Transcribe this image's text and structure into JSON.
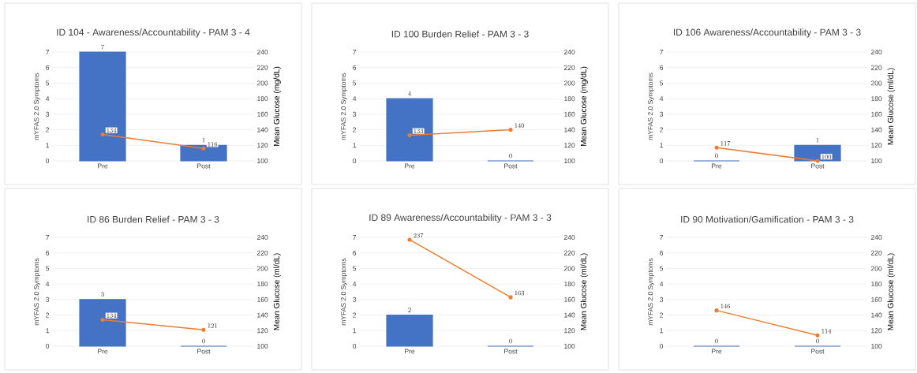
{
  "chart_data": [
    {
      "type": "bar",
      "title": "ID 104 - Awareness/Accountability - PAM 3 - 4",
      "categories": [
        "Pre",
        "Post"
      ],
      "ylabel": "mYFAS 2.0 Symptoms",
      "y2label": "Mean Glucose (mg/dL)",
      "ylim": [
        0,
        7
      ],
      "yticks": [
        0,
        1,
        2,
        3,
        4,
        5,
        6,
        7
      ],
      "y2lim": [
        100,
        240
      ],
      "y2ticks": [
        100,
        120,
        140,
        160,
        180,
        200,
        220,
        240
      ],
      "grid": "y",
      "marker": "circle",
      "data_labels": true,
      "series": [
        {
          "color": "#4472c4",
          "values": [
            7,
            1
          ]
        },
        {
          "type": "line",
          "axis": "y2",
          "color": "#ed7d31",
          "values": [
            134,
            116
          ]
        }
      ]
    },
    {
      "type": "bar",
      "title": "ID 100 Burden Relief - PAM 3 - 3",
      "categories": [
        "Pre",
        "Post"
      ],
      "ylabel": "mYFAS 2.0 Symptoms",
      "y2label": "Mean Glucose (mg/dL)",
      "ylim": [
        0,
        7
      ],
      "yticks": [
        0,
        1,
        2,
        3,
        4,
        5,
        6,
        7
      ],
      "y2lim": [
        100,
        240
      ],
      "y2ticks": [
        100,
        120,
        140,
        160,
        180,
        200,
        220,
        240
      ],
      "grid": "y",
      "marker": "circle",
      "data_labels": true,
      "series": [
        {
          "color": "#4472c4",
          "values": [
            4,
            0
          ]
        },
        {
          "type": "line",
          "axis": "y2",
          "color": "#ed7d31",
          "values": [
            133,
            140
          ]
        }
      ]
    },
    {
      "type": "bar",
      "title": "ID 106 Awareness/Accountability - PAM 3 - 3",
      "categories": [
        "Pre",
        "Post"
      ],
      "ylabel": "mYFAS 2.0 Symptoms",
      "y2label": "Mean Glucose (ml/dL)",
      "ylim": [
        0,
        7
      ],
      "yticks": [
        0,
        1,
        2,
        3,
        4,
        5,
        6,
        7
      ],
      "y2lim": [
        100,
        240
      ],
      "y2ticks": [
        100,
        120,
        140,
        160,
        180,
        200,
        220,
        240
      ],
      "grid": "y",
      "marker": "circle",
      "data_labels": true,
      "series": [
        {
          "color": "#4472c4",
          "values": [
            0,
            1
          ]
        },
        {
          "type": "line",
          "axis": "y2",
          "color": "#ed7d31",
          "values": [
            117,
            100
          ]
        }
      ]
    },
    {
      "type": "bar",
      "title": "ID 86 Burden Relief - PAM 3 - 3",
      "categories": [
        "Pre",
        "Post"
      ],
      "ylabel": "mYFAS 2.0 Symptoms",
      "y2label": "Mean Glucose (ml/dL)",
      "ylim": [
        0,
        7
      ],
      "yticks": [
        0,
        1,
        2,
        3,
        4,
        5,
        6,
        7
      ],
      "y2lim": [
        100,
        240
      ],
      "y2ticks": [
        100,
        120,
        140,
        160,
        180,
        200,
        220,
        240
      ],
      "grid": "y",
      "marker": "circle",
      "data_labels": true,
      "series": [
        {
          "color": "#4472c4",
          "values": [
            3,
            0
          ]
        },
        {
          "type": "line",
          "axis": "y2",
          "color": "#ed7d31",
          "values": [
            134,
            121
          ]
        }
      ]
    },
    {
      "type": "bar",
      "title": "ID 89 Awareness/Accountability - PAM 3 - 3",
      "categories": [
        "Pre",
        "Post"
      ],
      "ylabel": "mYFAS 2.0 Symptoms",
      "y2label": "Mean Glucose (ml/dL)",
      "ylim": [
        0,
        7
      ],
      "yticks": [
        0,
        1,
        2,
        3,
        4,
        5,
        6,
        7
      ],
      "y2lim": [
        100,
        240
      ],
      "y2ticks": [
        100,
        120,
        140,
        160,
        180,
        200,
        220,
        240
      ],
      "grid": "y",
      "marker": "circle",
      "data_labels": true,
      "series": [
        {
          "color": "#4472c4",
          "values": [
            2,
            0
          ]
        },
        {
          "type": "line",
          "axis": "y2",
          "color": "#ed7d31",
          "values": [
            237,
            163
          ]
        }
      ]
    },
    {
      "type": "bar",
      "title": "ID 90 Motivation/Gamification - PAM 3 - 3",
      "categories": [
        "Pre",
        "Post"
      ],
      "ylabel": "mYFAS 2.0 Symptoms",
      "y2label": "Mean Glucose (ml/dL)",
      "ylim": [
        0,
        7
      ],
      "yticks": [
        0,
        1,
        2,
        3,
        4,
        5,
        6,
        7
      ],
      "y2lim": [
        100,
        240
      ],
      "y2ticks": [
        100,
        120,
        140,
        160,
        180,
        200,
        220,
        240
      ],
      "grid": "y",
      "marker": "circle",
      "data_labels": true,
      "series": [
        {
          "color": "#4472c4",
          "values": [
            0,
            0
          ]
        },
        {
          "type": "line",
          "axis": "y2",
          "color": "#ed7d31",
          "values": [
            146,
            114
          ]
        }
      ]
    }
  ]
}
